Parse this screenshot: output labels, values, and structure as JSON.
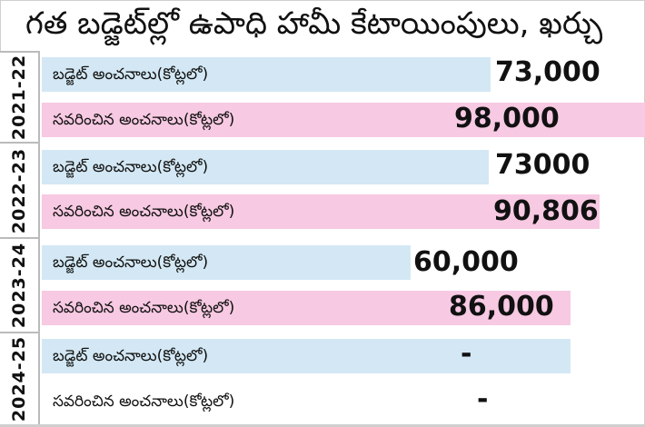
{
  "chart_data": {
    "type": "bar",
    "title": "గత బడ్జెట్‌ల్లో ఉపాధి హామీ కేటాయింపులు, ఖర్చు",
    "unit": "కోట్లలో",
    "categories": [
      "2021-22",
      "2022-23",
      "2023-24",
      "2024-25"
    ],
    "series": [
      {
        "name": "బడ్జెట్ అంచనాలు(కోట్లలో)",
        "values": [
          73000,
          73000,
          60000,
          null
        ],
        "labels": [
          "73,000",
          "73000",
          "60,000",
          "-"
        ],
        "color": "#d3e8f4"
      },
      {
        "name": "సవరించిన అంచనాలు(కోట్లలో)",
        "values": [
          98000,
          90806,
          86000,
          null
        ],
        "labels": [
          "98,000",
          "90,806",
          "86,000",
          "-"
        ],
        "color": "#f7c9e2"
      }
    ]
  }
}
